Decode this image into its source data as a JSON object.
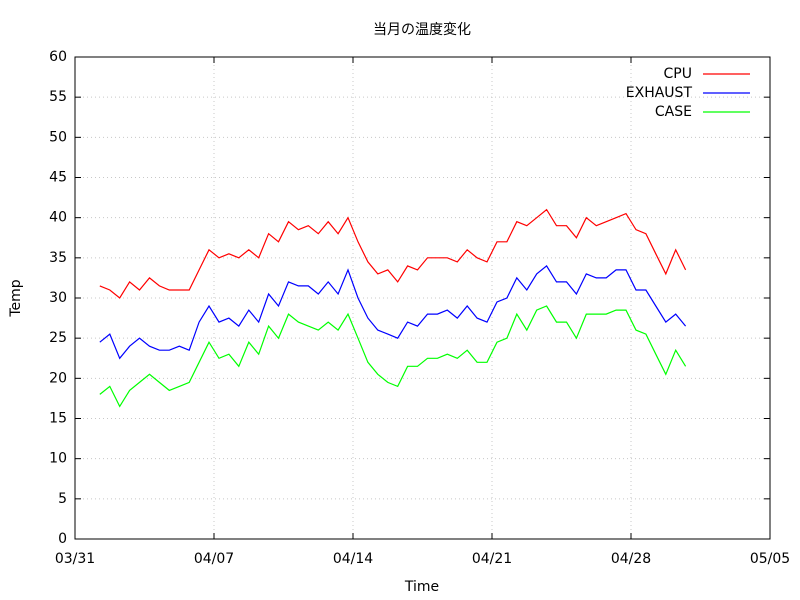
{
  "chart_data": {
    "type": "line",
    "title": "当月の温度変化",
    "x_label": "Time",
    "y_label": "Temp",
    "xlim": [
      0,
      35
    ],
    "ylim": [
      0,
      60
    ],
    "xticks": [
      {
        "value": 0,
        "label": "03/31"
      },
      {
        "value": 7,
        "label": "04/07"
      },
      {
        "value": 14,
        "label": "04/14"
      },
      {
        "value": 21,
        "label": "04/21"
      },
      {
        "value": 28,
        "label": "04/28"
      },
      {
        "value": 35,
        "label": "05/05"
      }
    ],
    "yticks": [
      0,
      5,
      10,
      15,
      20,
      25,
      30,
      35,
      40,
      45,
      50,
      55,
      60
    ],
    "grid": true,
    "legend": "top-right",
    "x": [
      1.25,
      1.75,
      2.25,
      2.75,
      3.25,
      3.75,
      4.25,
      4.75,
      5.25,
      5.75,
      6.25,
      6.75,
      7.25,
      7.75,
      8.25,
      8.75,
      9.25,
      9.75,
      10.25,
      10.75,
      11.25,
      11.75,
      12.25,
      12.75,
      13.25,
      13.75,
      14.25,
      14.75,
      15.25,
      15.75,
      16.25,
      16.75,
      17.25,
      17.75,
      18.25,
      18.75,
      19.25,
      19.75,
      20.25,
      20.75,
      21.25,
      21.75,
      22.25,
      22.75,
      23.25,
      23.75,
      24.25,
      24.75,
      25.25,
      25.75,
      26.25,
      26.75,
      27.25,
      27.75,
      28.25,
      28.75,
      29.25,
      29.75,
      30.25,
      30.75
    ],
    "series": [
      {
        "name": "CPU",
        "color": "#ff0000",
        "values": [
          31.5,
          31,
          30,
          32,
          31,
          32.5,
          31.5,
          31,
          31,
          31,
          33.5,
          36,
          35,
          35.5,
          35,
          36,
          35,
          38,
          37,
          39.5,
          38.5,
          39,
          38,
          39.5,
          38,
          40,
          37,
          34.5,
          33,
          33.5,
          32,
          34,
          33.5,
          35,
          35,
          35,
          34.5,
          36,
          35,
          34.5,
          37,
          37,
          39.5,
          39,
          40,
          41,
          39,
          39,
          37.5,
          40,
          39,
          39.5,
          40,
          40.5,
          38.5,
          38,
          35.5,
          33,
          36,
          33.5
        ]
      },
      {
        "name": "EXHAUST",
        "color": "#0000ff",
        "values": [
          24.5,
          25.5,
          22.5,
          24,
          25,
          24,
          23.5,
          23.5,
          24,
          23.5,
          27,
          29,
          27,
          27.5,
          26.5,
          28.5,
          27,
          30.5,
          29,
          32,
          31.5,
          31.5,
          30.5,
          32,
          30.5,
          33.5,
          30,
          27.5,
          26,
          25.5,
          25,
          27,
          26.5,
          28,
          28,
          28.5,
          27.5,
          29,
          27.5,
          27,
          29.5,
          30,
          32.5,
          31,
          33,
          34,
          32,
          32,
          30.5,
          33,
          32.5,
          32.5,
          33.5,
          33.5,
          31,
          31,
          29,
          27,
          28,
          26.5
        ]
      },
      {
        "name": "CASE",
        "color": "#00ff00",
        "values": [
          18,
          19,
          16.5,
          18.5,
          19.5,
          20.5,
          19.5,
          18.5,
          19,
          19.5,
          22,
          24.5,
          22.5,
          23,
          21.5,
          24.5,
          23,
          26.5,
          25,
          28,
          27,
          26.5,
          26,
          27,
          26,
          28,
          25,
          22,
          20.5,
          19.5,
          19,
          21.5,
          21.5,
          22.5,
          22.5,
          23,
          22.5,
          23.5,
          22,
          22,
          24.5,
          25,
          28,
          26,
          28.5,
          29,
          27,
          27,
          25,
          28,
          28,
          28,
          28.5,
          28.5,
          26,
          25.5,
          23,
          20.5,
          23.5,
          21.5
        ]
      }
    ]
  }
}
